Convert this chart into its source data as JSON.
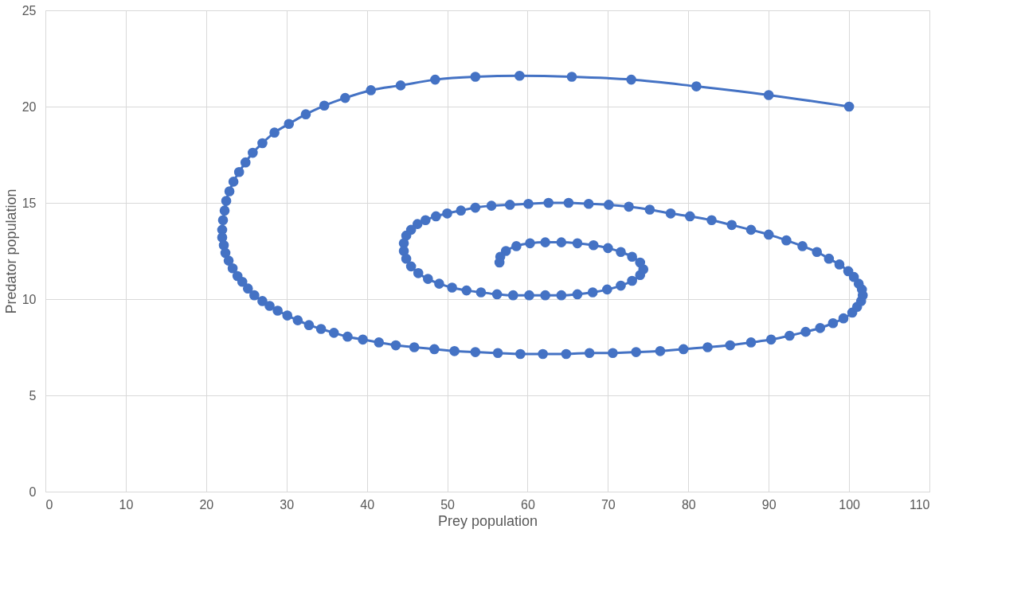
{
  "chart_data": {
    "type": "line",
    "xlabel": "Prey population",
    "ylabel": "Predator population",
    "xlim": [
      0,
      110
    ],
    "xticks": [
      0,
      10,
      20,
      30,
      40,
      50,
      60,
      70,
      80,
      90,
      100,
      110
    ],
    "ylim": [
      0,
      25
    ],
    "yticks": [
      0,
      5,
      10,
      15,
      20,
      25
    ],
    "grid": true,
    "marker": "circle",
    "line_style": "solid",
    "series": [
      {
        "color": "#4472c4",
        "x": [
          100,
          90,
          81,
          72.9,
          65.5,
          59,
          53.5,
          48.5,
          44.2,
          40.5,
          37.3,
          34.7,
          32.4,
          30.3,
          28.5,
          27,
          25.8,
          24.9,
          24.1,
          23.4,
          22.9,
          22.5,
          22.3,
          22.1,
          22.0,
          22.0,
          22.2,
          22.4,
          22.8,
          23.3,
          23.9,
          24.5,
          25.2,
          26.0,
          27.0,
          27.9,
          28.9,
          30.1,
          31.4,
          32.8,
          34.3,
          35.9,
          37.6,
          39.5,
          41.5,
          43.6,
          45.9,
          48.4,
          50.9,
          53.5,
          56.3,
          59.1,
          61.9,
          64.8,
          67.7,
          70.6,
          73.5,
          76.5,
          79.4,
          82.4,
          85.2,
          87.8,
          90.3,
          92.6,
          94.6,
          96.4,
          98.0,
          99.3,
          100.4,
          101.0,
          101.5,
          101.7,
          101.6,
          101.2,
          100.6,
          99.9,
          98.8,
          97.5,
          96.0,
          94.2,
          92.2,
          90.0,
          87.8,
          85.4,
          82.9,
          80.2,
          77.8,
          75.2,
          72.6,
          70.1,
          67.6,
          65.1,
          62.6,
          60.1,
          57.8,
          55.5,
          53.5,
          51.7,
          50.0,
          48.6,
          47.3,
          46.3,
          45.5,
          44.9,
          44.6,
          44.6,
          44.9,
          45.5,
          46.4,
          47.6,
          49.0,
          50.6,
          52.4,
          54.2,
          56.2,
          58.2,
          60.2,
          62.2,
          64.2,
          66.2,
          68.1,
          69.9,
          71.6,
          73.0,
          74.0,
          74.4,
          74.0,
          73.0,
          71.6,
          70.0,
          68.2,
          66.2,
          64.2,
          62.2,
          60.3,
          58.6,
          57.3,
          56.6,
          56.5
        ],
        "values": [
          20.0,
          20.6,
          21.05,
          21.4,
          21.55,
          21.6,
          21.55,
          21.4,
          21.1,
          20.85,
          20.45,
          20.05,
          19.6,
          19.1,
          18.65,
          18.1,
          17.6,
          17.1,
          16.6,
          16.1,
          15.6,
          15.1,
          14.6,
          14.1,
          13.6,
          13.2,
          12.8,
          12.4,
          12.0,
          11.6,
          11.2,
          10.9,
          10.55,
          10.2,
          9.9,
          9.65,
          9.4,
          9.15,
          8.9,
          8.65,
          8.45,
          8.25,
          8.05,
          7.9,
          7.75,
          7.6,
          7.5,
          7.4,
          7.3,
          7.25,
          7.2,
          7.15,
          7.15,
          7.15,
          7.2,
          7.2,
          7.25,
          7.3,
          7.4,
          7.5,
          7.6,
          7.75,
          7.9,
          8.1,
          8.3,
          8.5,
          8.75,
          9.0,
          9.3,
          9.6,
          9.9,
          10.2,
          10.5,
          10.8,
          11.15,
          11.45,
          11.8,
          12.1,
          12.45,
          12.75,
          13.05,
          13.35,
          13.6,
          13.85,
          14.1,
          14.3,
          14.45,
          14.65,
          14.8,
          14.9,
          14.95,
          15.0,
          15.0,
          14.95,
          14.9,
          14.85,
          14.75,
          14.6,
          14.45,
          14.3,
          14.1,
          13.9,
          13.6,
          13.3,
          12.9,
          12.5,
          12.1,
          11.7,
          11.35,
          11.05,
          10.8,
          10.6,
          10.45,
          10.35,
          10.25,
          10.2,
          10.2,
          10.2,
          10.2,
          10.25,
          10.35,
          10.5,
          10.7,
          10.95,
          11.25,
          11.55,
          11.9,
          12.2,
          12.45,
          12.65,
          12.8,
          12.9,
          12.95,
          12.95,
          12.9,
          12.75,
          12.5,
          12.2,
          11.9
        ]
      }
    ]
  }
}
